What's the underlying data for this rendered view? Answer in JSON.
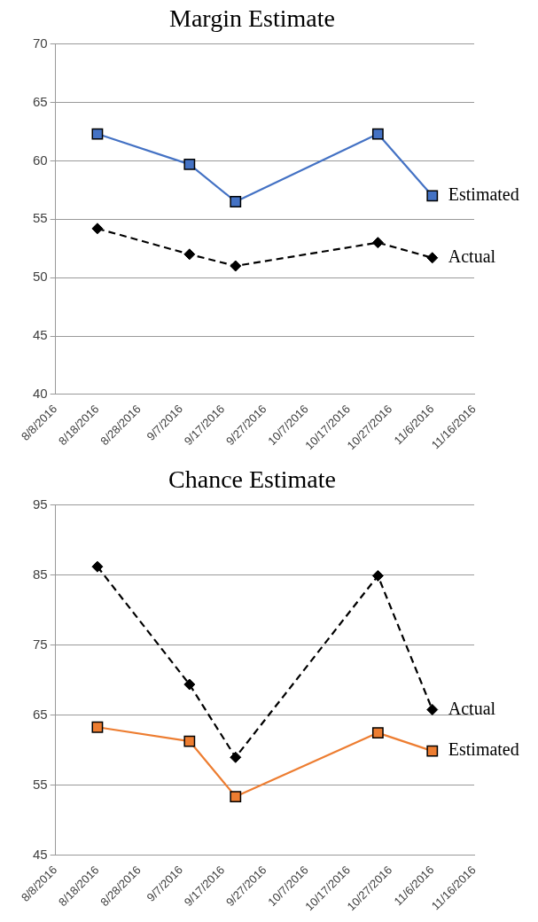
{
  "chart_data": [
    {
      "type": "line",
      "title": "Margin Estimate",
      "x": [
        "2016-08-18",
        "2016-09-09",
        "2016-09-20",
        "2016-10-24",
        "2016-11-06"
      ],
      "series": [
        {
          "name": "Estimated",
          "color": "#4472c4",
          "values": [
            62.3,
            59.7,
            56.5,
            62.3,
            57.0
          ],
          "marker": "square",
          "line_style": "solid"
        },
        {
          "name": "Actual",
          "color": "#000000",
          "values": [
            54.2,
            52.0,
            51.0,
            53.0,
            51.7
          ],
          "marker": "diamond",
          "line_style": "dashed"
        }
      ],
      "xlim": [
        "2016-08-08",
        "2016-11-16"
      ],
      "xticks": [
        {
          "value": "2016-08-08",
          "label": "8/8/2016"
        },
        {
          "value": "2016-08-18",
          "label": "8/18/2016"
        },
        {
          "value": "2016-08-28",
          "label": "8/28/2016"
        },
        {
          "value": "2016-09-07",
          "label": "9/7/2016"
        },
        {
          "value": "2016-09-17",
          "label": "9/17/2016"
        },
        {
          "value": "2016-09-27",
          "label": "9/27/2016"
        },
        {
          "value": "2016-10-07",
          "label": "10/7/2016"
        },
        {
          "value": "2016-10-17",
          "label": "10/17/2016"
        },
        {
          "value": "2016-10-27",
          "label": "10/27/2016"
        },
        {
          "value": "2016-11-06",
          "label": "11/6/2016"
        },
        {
          "value": "2016-11-16",
          "label": "11/16/2016"
        }
      ],
      "ylim": [
        40,
        70
      ],
      "yticks": [
        40,
        45,
        50,
        55,
        60,
        65,
        70
      ],
      "grid": "y",
      "legend": false
    },
    {
      "type": "line",
      "title": "Chance Estimate",
      "x": [
        "2016-08-18",
        "2016-09-09",
        "2016-09-20",
        "2016-10-24",
        "2016-11-06"
      ],
      "series": [
        {
          "name": "Actual",
          "color": "#000000",
          "values": [
            86.2,
            69.4,
            59.0,
            84.9,
            65.8
          ],
          "marker": "diamond",
          "line_style": "dashed"
        },
        {
          "name": "Estimated",
          "color": "#ed7d31",
          "values": [
            63.3,
            61.3,
            53.4,
            62.5,
            59.9
          ],
          "marker": "square",
          "line_style": "solid"
        }
      ],
      "xlim": [
        "2016-08-08",
        "2016-11-16"
      ],
      "xticks": [
        {
          "value": "2016-08-08",
          "label": "8/8/2016"
        },
        {
          "value": "2016-08-18",
          "label": "8/18/2016"
        },
        {
          "value": "2016-08-28",
          "label": "8/28/2016"
        },
        {
          "value": "2016-09-07",
          "label": "9/7/2016"
        },
        {
          "value": "2016-09-17",
          "label": "9/17/2016"
        },
        {
          "value": "2016-09-27",
          "label": "9/27/2016"
        },
        {
          "value": "2016-10-07",
          "label": "10/7/2016"
        },
        {
          "value": "2016-10-17",
          "label": "10/17/2016"
        },
        {
          "value": "2016-10-27",
          "label": "10/27/2016"
        },
        {
          "value": "2016-11-06",
          "label": "11/6/2016"
        },
        {
          "value": "2016-11-16",
          "label": "11/16/2016"
        }
      ],
      "ylim": [
        45,
        95
      ],
      "yticks": [
        45,
        55,
        65,
        75,
        85,
        95
      ],
      "grid": "y",
      "legend": false
    }
  ]
}
